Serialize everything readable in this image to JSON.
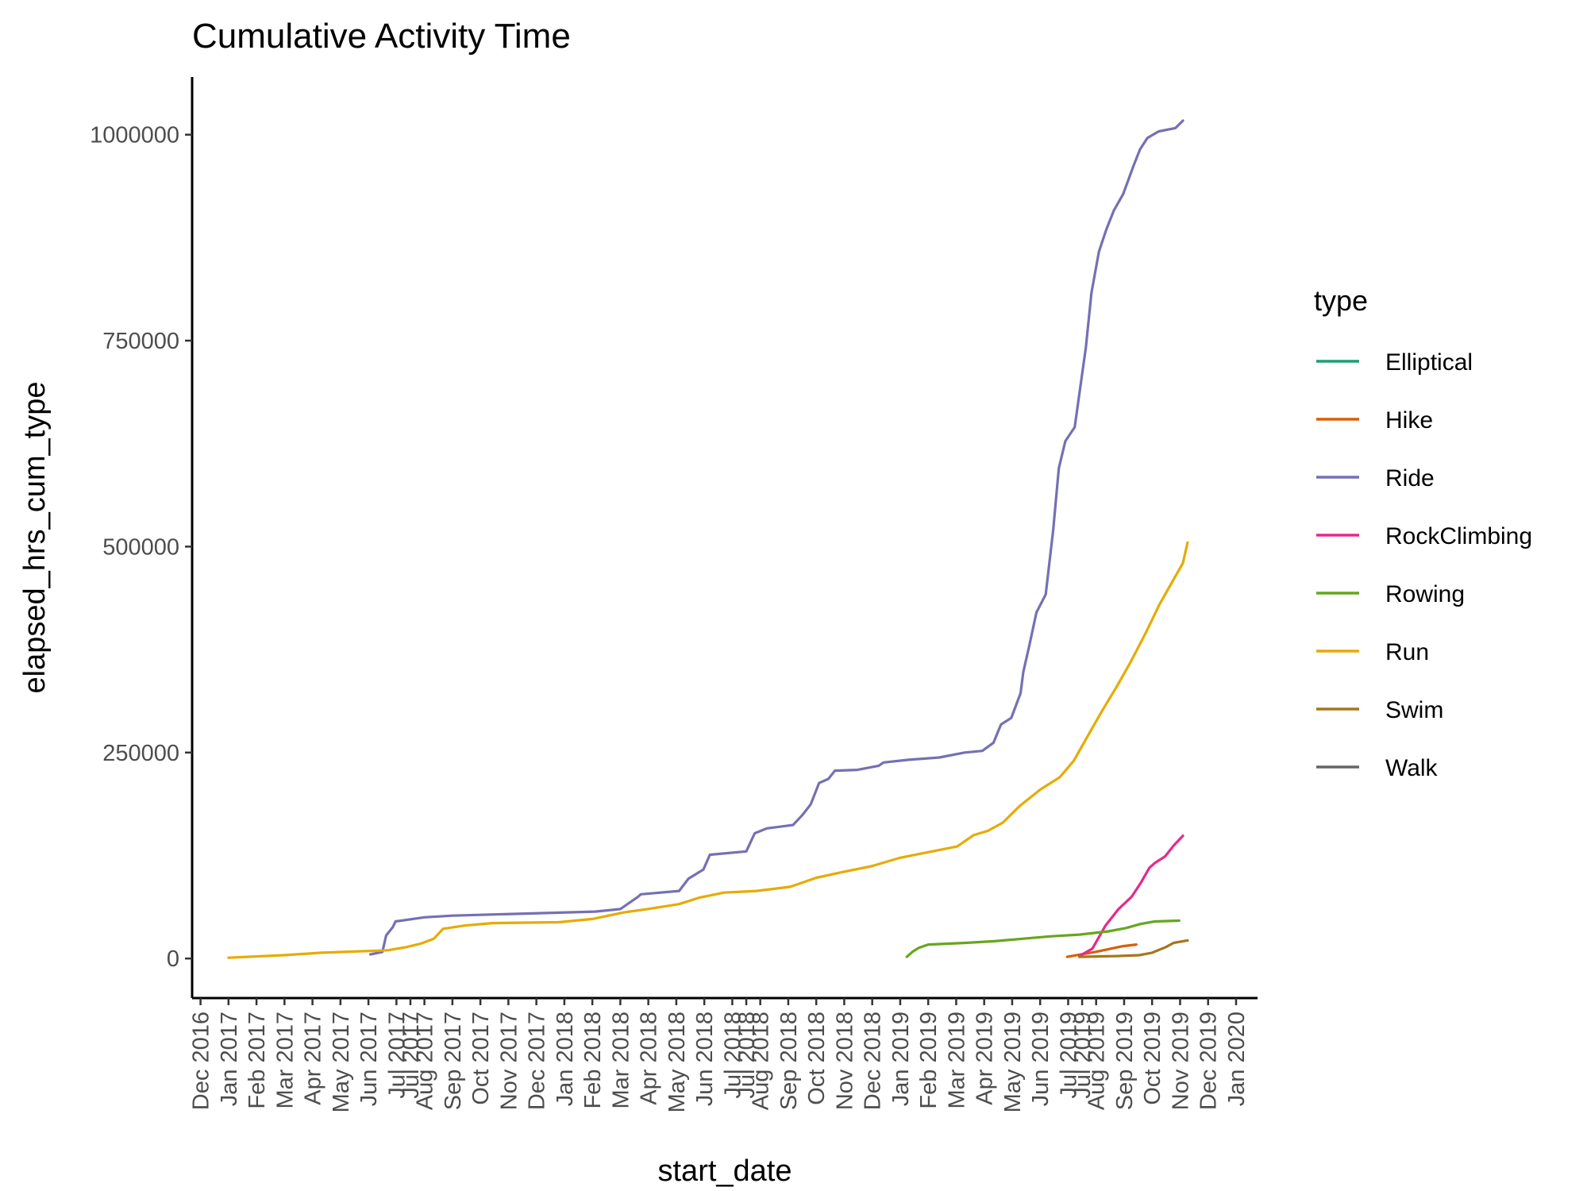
{
  "chart_data": {
    "type": "line",
    "title": "Cumulative Activity Time",
    "xlabel": "start_date",
    "ylabel": "elapsed_hrs_cum_type",
    "xlim": [
      "2016-11-22",
      "2020-01-08"
    ],
    "ylim": [
      -48000,
      1070000
    ],
    "y_ticks": [
      0,
      250000,
      500000,
      750000,
      1000000
    ],
    "y_tick_labels": [
      "0",
      "250000",
      "500000",
      "750000",
      "1000000"
    ],
    "x_ticks": [
      "2016-12-01",
      "2016-12-31",
      "2017-01-30",
      "2017-03-01",
      "2017-03-31",
      "2017-04-30",
      "2017-05-30",
      "2017-06-29",
      "2017-07-14",
      "2017-07-29",
      "2017-08-28",
      "2017-09-27",
      "2017-10-27",
      "2017-11-26",
      "2017-12-26",
      "2018-01-25",
      "2018-02-24",
      "2018-03-26",
      "2018-04-25",
      "2018-05-25",
      "2018-06-24",
      "2018-07-09",
      "2018-07-24",
      "2018-08-23",
      "2018-09-22",
      "2018-10-22",
      "2018-11-21",
      "2018-12-21",
      "2019-01-20",
      "2019-02-19",
      "2019-03-21",
      "2019-04-20",
      "2019-05-20",
      "2019-06-19",
      "2019-07-04",
      "2019-07-19",
      "2019-08-18",
      "2019-09-17",
      "2019-10-17",
      "2019-11-16",
      "2019-12-16"
    ],
    "x_tick_labels": [
      "Dec 2016",
      "Jan 2017",
      "Feb 2017",
      "Mar 2017",
      "Apr 2017",
      "May 2017",
      "Jun 2017",
      "Jul 2017",
      "Jul 2017",
      "Aug 2017",
      "Sep 2017",
      "Oct 2017",
      "Nov 2017",
      "Dec 2017",
      "Jan 2018",
      "Feb 2018",
      "Mar 2018",
      "Apr 2018",
      "May 2018",
      "Jun 2018",
      "Jul 2018",
      "Jul 2018",
      "Aug 2018",
      "Sep 2018",
      "Oct 2018",
      "Nov 2018",
      "Dec 2018",
      "Jan 2019",
      "Feb 2019",
      "Mar 2019",
      "Apr 2019",
      "May 2019",
      "Jun 2019",
      "Jul 2019",
      "Jul 2019",
      "Aug 2019",
      "Sep 2019",
      "Oct 2019",
      "Nov 2019",
      "Dec 2019",
      "Jan 2020"
    ],
    "legend": {
      "title": "type",
      "position": "right"
    },
    "grid": false,
    "series": [
      {
        "name": "Elliptical",
        "color": "#1B9E77",
        "points": []
      },
      {
        "name": "Hike",
        "color": "#D95F02",
        "points": [
          [
            "2019-06-18",
            2000
          ],
          [
            "2019-07-18",
            8000
          ],
          [
            "2019-08-17",
            15000
          ],
          [
            "2019-08-31",
            17000
          ]
        ]
      },
      {
        "name": "Ride",
        "color": "#7570B3",
        "points": [
          [
            "2017-06-01",
            5000
          ],
          [
            "2017-06-14",
            8000
          ],
          [
            "2017-06-18",
            28000
          ],
          [
            "2017-06-25",
            38000
          ],
          [
            "2017-06-28",
            45000
          ],
          [
            "2017-07-29",
            50000
          ],
          [
            "2017-08-28",
            52000
          ],
          [
            "2018-01-28",
            57000
          ],
          [
            "2018-02-24",
            60000
          ],
          [
            "2018-03-15",
            75000
          ],
          [
            "2018-03-18",
            78000
          ],
          [
            "2018-04-28",
            82000
          ],
          [
            "2018-05-08",
            97000
          ],
          [
            "2018-05-24",
            108000
          ],
          [
            "2018-05-31",
            126000
          ],
          [
            "2018-07-09",
            130000
          ],
          [
            "2018-07-18",
            152000
          ],
          [
            "2018-07-31",
            158000
          ],
          [
            "2018-08-28",
            162000
          ],
          [
            "2018-09-07",
            174000
          ],
          [
            "2018-09-16",
            187000
          ],
          [
            "2018-09-25",
            213000
          ],
          [
            "2018-10-05",
            218000
          ],
          [
            "2018-10-12",
            228000
          ],
          [
            "2018-11-05",
            229000
          ],
          [
            "2018-11-28",
            234000
          ],
          [
            "2018-12-03",
            238000
          ],
          [
            "2018-12-28",
            241000
          ],
          [
            "2019-02-01",
            244000
          ],
          [
            "2019-02-28",
            250000
          ],
          [
            "2019-03-19",
            252000
          ],
          [
            "2019-03-31",
            262000
          ],
          [
            "2019-04-08",
            284000
          ],
          [
            "2019-04-19",
            292000
          ],
          [
            "2019-04-29",
            322000
          ],
          [
            "2019-05-02",
            348000
          ],
          [
            "2019-05-08",
            378000
          ],
          [
            "2019-05-16",
            420000
          ],
          [
            "2019-05-26",
            442000
          ],
          [
            "2019-06-03",
            520000
          ],
          [
            "2019-06-09",
            595000
          ],
          [
            "2019-06-16",
            628000
          ],
          [
            "2019-06-26",
            645000
          ],
          [
            "2019-07-08",
            742000
          ],
          [
            "2019-07-14",
            808000
          ],
          [
            "2019-07-22",
            858000
          ],
          [
            "2019-07-30",
            885000
          ],
          [
            "2019-08-07",
            908000
          ],
          [
            "2019-08-17",
            928000
          ],
          [
            "2019-08-28",
            962000
          ],
          [
            "2019-09-04",
            982000
          ],
          [
            "2019-09-12",
            996000
          ],
          [
            "2019-09-24",
            1004000
          ],
          [
            "2019-10-12",
            1008000
          ],
          [
            "2019-10-20",
            1017000
          ]
        ]
      },
      {
        "name": "RockClimbing",
        "color": "#E7298A",
        "points": [
          [
            "2019-07-01",
            3000
          ],
          [
            "2019-07-15",
            12000
          ],
          [
            "2019-07-29",
            40000
          ],
          [
            "2019-08-12",
            60000
          ],
          [
            "2019-08-26",
            75000
          ],
          [
            "2019-09-05",
            92000
          ],
          [
            "2019-09-14",
            110000
          ],
          [
            "2019-09-20",
            116000
          ],
          [
            "2019-10-01",
            124000
          ],
          [
            "2019-10-10",
            137000
          ],
          [
            "2019-10-20",
            149000
          ]
        ]
      },
      {
        "name": "Rowing",
        "color": "#66A61E",
        "points": [
          [
            "2018-12-28",
            2000
          ],
          [
            "2019-01-03",
            8000
          ],
          [
            "2019-01-10",
            13000
          ],
          [
            "2019-01-20",
            17000
          ],
          [
            "2019-03-01",
            19000
          ],
          [
            "2019-04-01",
            21000
          ],
          [
            "2019-05-01",
            24000
          ],
          [
            "2019-06-01",
            27000
          ],
          [
            "2019-07-01",
            29000
          ],
          [
            "2019-08-01",
            33000
          ],
          [
            "2019-08-20",
            37000
          ],
          [
            "2019-09-05",
            42000
          ],
          [
            "2019-09-20",
            45000
          ],
          [
            "2019-10-16",
            46000
          ]
        ]
      },
      {
        "name": "Run",
        "color": "#E6AB02",
        "points": [
          [
            "2016-12-31",
            1000
          ],
          [
            "2017-02-28",
            4000
          ],
          [
            "2017-04-10",
            7000
          ],
          [
            "2017-06-20",
            10000
          ],
          [
            "2017-07-10",
            14000
          ],
          [
            "2017-07-25",
            18000
          ],
          [
            "2017-08-08",
            24000
          ],
          [
            "2017-08-18",
            36000
          ],
          [
            "2017-09-10",
            40000
          ],
          [
            "2017-10-10",
            43000
          ],
          [
            "2017-12-20",
            44000
          ],
          [
            "2018-01-25",
            48000
          ],
          [
            "2018-02-28",
            56000
          ],
          [
            "2018-03-25",
            60000
          ],
          [
            "2018-04-28",
            66000
          ],
          [
            "2018-05-20",
            74000
          ],
          [
            "2018-06-15",
            80000
          ],
          [
            "2018-07-20",
            82000
          ],
          [
            "2018-08-25",
            87000
          ],
          [
            "2018-09-22",
            98000
          ],
          [
            "2018-10-20",
            105000
          ],
          [
            "2018-11-20",
            112000
          ],
          [
            "2018-12-20",
            122000
          ],
          [
            "2019-01-15",
            128000
          ],
          [
            "2019-02-20",
            136000
          ],
          [
            "2019-03-10",
            150000
          ],
          [
            "2019-03-25",
            155000
          ],
          [
            "2019-04-10",
            165000
          ],
          [
            "2019-04-28",
            185000
          ],
          [
            "2019-05-20",
            205000
          ],
          [
            "2019-06-10",
            220000
          ],
          [
            "2019-06-25",
            240000
          ],
          [
            "2019-07-10",
            270000
          ],
          [
            "2019-07-25",
            300000
          ],
          [
            "2019-08-10",
            330000
          ],
          [
            "2019-08-25",
            360000
          ],
          [
            "2019-09-10",
            395000
          ],
          [
            "2019-09-25",
            430000
          ],
          [
            "2019-10-10",
            460000
          ],
          [
            "2019-10-20",
            480000
          ],
          [
            "2019-10-25",
            505000
          ]
        ]
      },
      {
        "name": "Swim",
        "color": "#A6761D",
        "points": [
          [
            "2019-07-01",
            2000
          ],
          [
            "2019-08-10",
            3000
          ],
          [
            "2019-09-03",
            4000
          ],
          [
            "2019-09-17",
            7000
          ],
          [
            "2019-10-02",
            14000
          ],
          [
            "2019-10-10",
            19000
          ],
          [
            "2019-10-25",
            22000
          ]
        ]
      },
      {
        "name": "Walk",
        "color": "#666666",
        "points": []
      }
    ]
  }
}
